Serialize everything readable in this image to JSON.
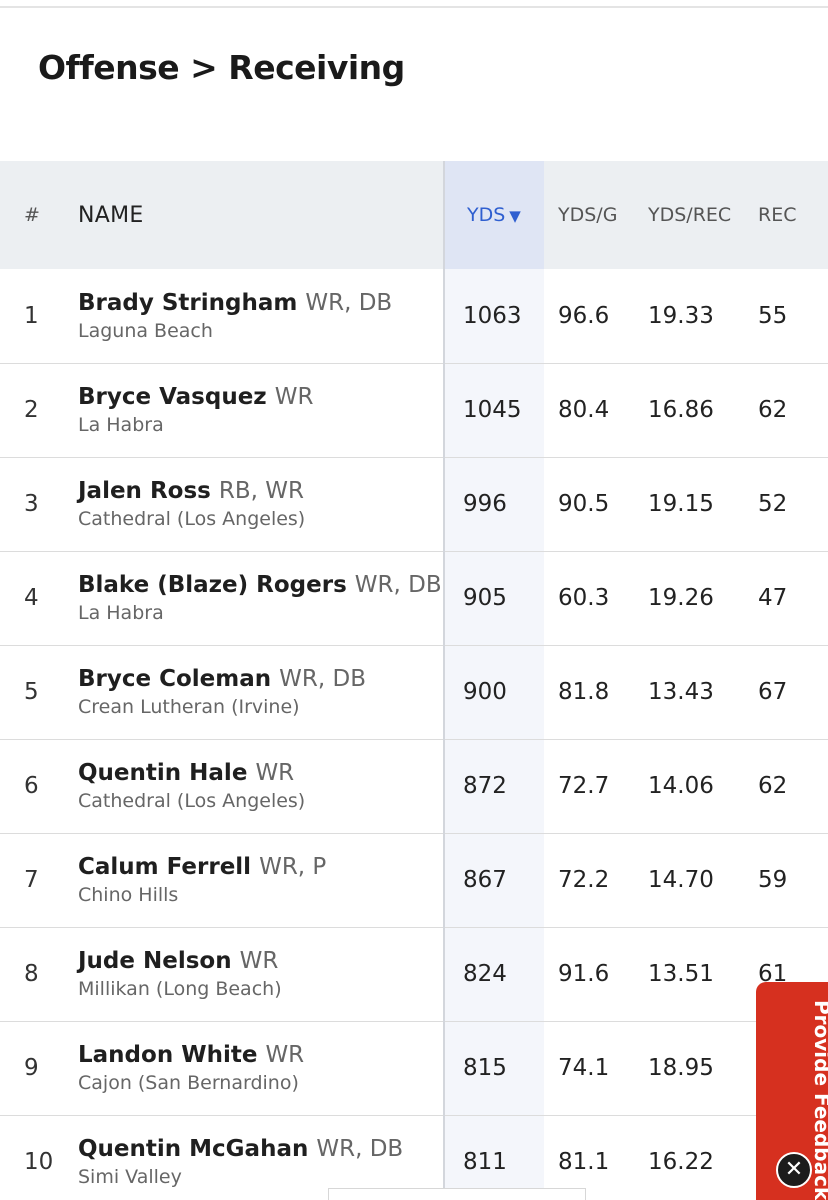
{
  "page": {
    "title": "Offense > Receiving"
  },
  "table": {
    "headers": {
      "rank": "#",
      "name": "NAME",
      "yds": "YDS",
      "sort_indicator": "▼",
      "yds_per_game": "YDS/G",
      "yds_per_rec": "YDS/REC",
      "rec": "REC"
    },
    "rows": [
      {
        "rank": "1",
        "name": "Brady Stringham",
        "pos": "WR, DB",
        "school": "Laguna Beach",
        "yds": "1063",
        "yds_g": "96.6",
        "yds_rec": "19.33",
        "rec": "55"
      },
      {
        "rank": "2",
        "name": "Bryce Vasquez",
        "pos": "WR",
        "school": "La Habra",
        "yds": "1045",
        "yds_g": "80.4",
        "yds_rec": "16.86",
        "rec": "62"
      },
      {
        "rank": "3",
        "name": "Jalen Ross",
        "pos": "RB, WR",
        "school": "Cathedral (Los Angeles)",
        "yds": "996",
        "yds_g": "90.5",
        "yds_rec": "19.15",
        "rec": "52"
      },
      {
        "rank": "4",
        "name": "Blake (Blaze) Rogers",
        "pos": "WR, DB",
        "school": "La Habra",
        "yds": "905",
        "yds_g": "60.3",
        "yds_rec": "19.26",
        "rec": "47"
      },
      {
        "rank": "5",
        "name": "Bryce Coleman",
        "pos": "WR, DB",
        "school": "Crean Lutheran (Irvine)",
        "yds": "900",
        "yds_g": "81.8",
        "yds_rec": "13.43",
        "rec": "67"
      },
      {
        "rank": "6",
        "name": "Quentin Hale",
        "pos": "WR",
        "school": "Cathedral (Los Angeles)",
        "yds": "872",
        "yds_g": "72.7",
        "yds_rec": "14.06",
        "rec": "62"
      },
      {
        "rank": "7",
        "name": "Calum Ferrell",
        "pos": "WR, P",
        "school": "Chino Hills",
        "yds": "867",
        "yds_g": "72.2",
        "yds_rec": "14.70",
        "rec": "59"
      },
      {
        "rank": "8",
        "name": "Jude Nelson",
        "pos": "WR",
        "school": "Millikan (Long Beach)",
        "yds": "824",
        "yds_g": "91.6",
        "yds_rec": "13.51",
        "rec": "61"
      },
      {
        "rank": "9",
        "name": "Landon White",
        "pos": "WR",
        "school": "Cajon (San Bernardino)",
        "yds": "815",
        "yds_g": "74.1",
        "yds_rec": "18.95",
        "rec": ""
      },
      {
        "rank": "10",
        "name": "Quentin McGahan",
        "pos": "WR, DB",
        "school": "Simi Valley",
        "yds": "811",
        "yds_g": "81.1",
        "yds_rec": "16.22",
        "rec": ""
      }
    ]
  },
  "feedback": {
    "label": "Provide Feedback",
    "close_glyph": "✕"
  },
  "colors": {
    "accent": "#2f5fd0",
    "feedback": "#d6301f",
    "header_bg": "#eceff2",
    "sorted_col_bg": "#f4f6fb"
  }
}
